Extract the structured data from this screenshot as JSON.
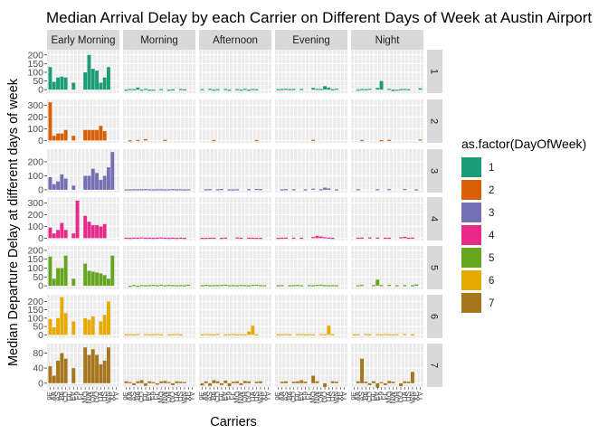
{
  "chart_data": {
    "type": "bar",
    "title": "Median Arrival Delay by each Carrier on Different Days of Week at Austin Airport",
    "xlabel": "Carriers",
    "ylabel": "Median Departure Delay at different days of week",
    "legend": {
      "title": "as.factor(DayOfWeek)",
      "placement": "right",
      "entries": [
        "1",
        "2",
        "3",
        "4",
        "5",
        "6",
        "7"
      ]
    },
    "carriers": [
      "9E",
      "AA",
      "AS",
      "B6",
      "CO",
      "DL",
      "EV",
      "F9",
      "FL",
      "MQ",
      "NW",
      "OH",
      "OO",
      "UA",
      "US",
      "WN",
      "XE",
      "YV"
    ],
    "columns": [
      "Early Morning",
      "Morning",
      "Afternoon",
      "Evening",
      "Night"
    ],
    "rows": [
      {
        "label": "1",
        "color": "#1b9e77",
        "ylim": [
          -20,
          230
        ],
        "ticks": [
          0,
          50,
          100,
          150,
          200
        ],
        "values": [
          [
            130,
            45,
            70,
            75,
            70,
            0,
            40,
            0,
            0,
            100,
            200,
            120,
            110,
            40,
            70,
            130,
            0,
            0
          ],
          [
            -3,
            4,
            3,
            12,
            -2,
            5,
            -2,
            -1,
            0,
            3,
            0,
            -1,
            2,
            0,
            4,
            2,
            0,
            0
          ],
          [
            3,
            0,
            5,
            -2,
            3,
            0,
            4,
            -1,
            0,
            3,
            -3,
            5,
            -2,
            4,
            3,
            0,
            0,
            0
          ],
          [
            3,
            4,
            5,
            3,
            4,
            0,
            4,
            0,
            0,
            10,
            5,
            4,
            20,
            12,
            2,
            6,
            0,
            0
          ],
          [
            0,
            -2,
            4,
            3,
            5,
            0,
            10,
            50,
            0,
            5,
            -8,
            -5,
            3,
            4,
            3,
            0,
            0,
            8
          ]
        ]
      },
      {
        "label": "2",
        "color": "#d95f02",
        "ylim": [
          -20,
          350
        ],
        "ticks": [
          0,
          100,
          200,
          300
        ],
        "values": [
          [
            325,
            40,
            60,
            60,
            90,
            0,
            40,
            0,
            0,
            90,
            90,
            90,
            90,
            125,
            80,
            0,
            0,
            0
          ],
          [
            0,
            2,
            0,
            5,
            0,
            12,
            0,
            0,
            0,
            0,
            5,
            0,
            0,
            0,
            0,
            0,
            0,
            0
          ],
          [
            0,
            0,
            0,
            4,
            0,
            0,
            0,
            0,
            0,
            0,
            0,
            0,
            0,
            0,
            4,
            0,
            0,
            0
          ],
          [
            0,
            0,
            0,
            0,
            0,
            0,
            0,
            0,
            0,
            6,
            0,
            0,
            0,
            0,
            0,
            0,
            0,
            0
          ],
          [
            0,
            0,
            4,
            0,
            0,
            0,
            0,
            3,
            0,
            5,
            0,
            0,
            0,
            0,
            0,
            0,
            0,
            8
          ]
        ]
      },
      {
        "label": "3",
        "color": "#7570b3",
        "ylim": [
          -20,
          290
        ],
        "ticks": [
          0,
          100,
          200
        ],
        "values": [
          [
            90,
            40,
            60,
            110,
            80,
            0,
            30,
            0,
            0,
            100,
            100,
            150,
            120,
            70,
            100,
            160,
            270,
            0
          ],
          [
            3,
            3,
            4,
            4,
            4,
            5,
            4,
            3,
            4,
            4,
            3,
            4,
            5,
            3,
            4,
            3,
            4,
            0
          ],
          [
            0,
            4,
            5,
            0,
            4,
            6,
            0,
            3,
            3,
            4,
            0,
            0,
            5,
            0,
            6,
            5,
            0,
            0
          ],
          [
            0,
            3,
            5,
            0,
            4,
            0,
            0,
            3,
            0,
            8,
            0,
            4,
            15,
            10,
            0,
            3,
            0,
            0
          ],
          [
            0,
            4,
            0,
            0,
            0,
            0,
            4,
            0,
            0,
            5,
            0,
            0,
            0,
            6,
            0,
            0,
            3,
            0
          ]
        ]
      },
      {
        "label": "4",
        "color": "#e7298a",
        "ylim": [
          -20,
          350
        ],
        "ticks": [
          0,
          100,
          200,
          300
        ],
        "values": [
          [
            90,
            40,
            70,
            130,
            70,
            0,
            40,
            320,
            0,
            190,
            140,
            110,
            110,
            100,
            120,
            0,
            0,
            0
          ],
          [
            4,
            3,
            4,
            4,
            6,
            4,
            4,
            3,
            4,
            6,
            4,
            3,
            4,
            3,
            4,
            3,
            0,
            0
          ],
          [
            3,
            3,
            4,
            4,
            0,
            3,
            4,
            0,
            0,
            6,
            4,
            0,
            4,
            4,
            3,
            3,
            0,
            0
          ],
          [
            3,
            4,
            5,
            0,
            4,
            0,
            4,
            0,
            0,
            10,
            20,
            14,
            8,
            5,
            3,
            0,
            0,
            0
          ],
          [
            0,
            4,
            5,
            0,
            6,
            0,
            5,
            0,
            4,
            4,
            0,
            0,
            8,
            12,
            4,
            5,
            0,
            0
          ]
        ]
      },
      {
        "label": "5",
        "color": "#66a61e",
        "ylim": [
          -20,
          225
        ],
        "ticks": [
          0,
          50,
          100,
          150,
          200
        ],
        "values": [
          [
            165,
            40,
            100,
            100,
            170,
            0,
            40,
            0,
            0,
            125,
            85,
            80,
            75,
            70,
            60,
            40,
            170,
            0
          ],
          [
            0,
            -3,
            5,
            -3,
            4,
            3,
            4,
            5,
            3,
            6,
            3,
            5,
            4,
            3,
            4,
            3,
            6,
            0
          ],
          [
            3,
            5,
            3,
            4,
            4,
            5,
            6,
            3,
            4,
            3,
            5,
            4,
            3,
            5,
            6,
            4,
            3,
            0
          ],
          [
            3,
            4,
            0,
            3,
            4,
            5,
            3,
            0,
            4,
            3,
            5,
            6,
            4,
            3,
            4,
            3,
            0,
            0
          ],
          [
            0,
            3,
            5,
            0,
            0,
            4,
            35,
            4,
            0,
            5,
            0,
            3,
            0,
            4,
            0,
            3,
            8,
            0
          ]
        ]
      },
      {
        "label": "6",
        "color": "#e6ab02",
        "ylim": [
          -20,
          240
        ],
        "ticks": [
          0,
          50,
          100,
          150,
          200
        ],
        "values": [
          [
            95,
            45,
            100,
            225,
            130,
            0,
            80,
            0,
            0,
            100,
            90,
            110,
            0,
            80,
            120,
            200,
            0,
            0
          ],
          [
            3,
            4,
            3,
            5,
            0,
            4,
            3,
            4,
            5,
            3,
            0,
            3,
            4,
            5,
            3,
            0,
            0,
            0
          ],
          [
            3,
            5,
            4,
            3,
            5,
            0,
            3,
            4,
            5,
            3,
            4,
            3,
            20,
            55,
            3,
            0,
            0,
            0
          ],
          [
            3,
            4,
            5,
            3,
            0,
            4,
            5,
            3,
            4,
            3,
            0,
            5,
            3,
            55,
            4,
            0,
            0,
            0
          ],
          [
            3,
            4,
            0,
            5,
            3,
            0,
            4,
            3,
            5,
            4,
            3,
            4,
            0,
            5,
            0,
            3,
            0,
            0
          ]
        ]
      },
      {
        "label": "7",
        "color": "#a6761d",
        "ylim": [
          -10,
          105
        ],
        "ticks": [
          0,
          40,
          80
        ],
        "values": [
          [
            45,
            20,
            60,
            80,
            65,
            0,
            40,
            0,
            0,
            95,
            75,
            90,
            75,
            50,
            60,
            95,
            0,
            0
          ],
          [
            5,
            3,
            -5,
            5,
            8,
            -7,
            5,
            3,
            -4,
            5,
            6,
            3,
            -5,
            5,
            4,
            3,
            0,
            0
          ],
          [
            -6,
            5,
            -7,
            8,
            5,
            -5,
            7,
            -8,
            4,
            5,
            -5,
            6,
            5,
            0,
            4,
            5,
            0,
            0
          ],
          [
            0,
            4,
            5,
            0,
            4,
            5,
            8,
            4,
            0,
            20,
            5,
            0,
            -10,
            0,
            5,
            4,
            0,
            0
          ],
          [
            0,
            5,
            65,
            4,
            -5,
            5,
            -12,
            3,
            -5,
            6,
            4,
            0,
            -8,
            5,
            4,
            30,
            0,
            0
          ]
        ]
      }
    ]
  }
}
